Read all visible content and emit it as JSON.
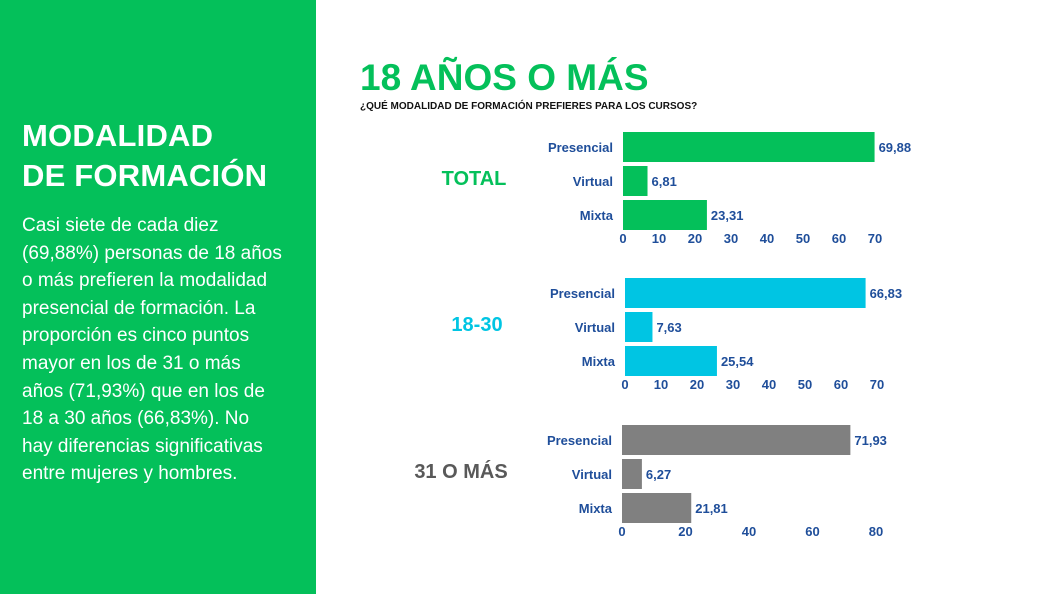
{
  "sidebar": {
    "title_line1": "MODALIDAD",
    "title_line2": "DE FORMACIÓN",
    "text": "Casi siete de cada diez (69,88%) personas de 18 años o más prefieren la modalidad presencial de formación. La proporción es cinco puntos mayor en los de 31 o más años (71,93%) que en los de 18 a 30 años (66,83%). No hay diferencias significativas entre mujeres y hombres."
  },
  "header": {
    "title": "18 AÑOS O MÁS",
    "question": "¿QUÉ MODALIDAD DE FORMACIÓN PREFIERES PARA LOS CURSOS?"
  },
  "colors": {
    "green": "#04c05a",
    "cyan": "#00c5e3",
    "gray": "#808080",
    "dark_gray": "#595959",
    "label_blue": "#1f4e9a"
  },
  "chart_data": [
    {
      "type": "bar",
      "orientation": "horizontal",
      "group_label": "TOTAL",
      "categories": [
        "Presencial",
        "Virtual",
        "Mixta"
      ],
      "values": [
        69.88,
        6.81,
        23.31
      ],
      "value_labels": [
        "69,88",
        "6,81",
        "23,31"
      ],
      "xlim": [
        0,
        70
      ],
      "xticks": [
        0,
        10,
        20,
        30,
        40,
        50,
        60,
        70
      ],
      "color": "#04c05a",
      "label_color": "#04c05a"
    },
    {
      "type": "bar",
      "orientation": "horizontal",
      "group_label": "18-30",
      "categories": [
        "Presencial",
        "Virtual",
        "Mixta"
      ],
      "values": [
        66.83,
        7.63,
        25.54
      ],
      "value_labels": [
        "66,83",
        "7,63",
        "25,54"
      ],
      "xlim": [
        0,
        70
      ],
      "xticks": [
        0,
        10,
        20,
        30,
        40,
        50,
        60,
        70
      ],
      "color": "#00c5e3",
      "label_color": "#00c5e3"
    },
    {
      "type": "bar",
      "orientation": "horizontal",
      "group_label": "31 O MÁS",
      "categories": [
        "Presencial",
        "Virtual",
        "Mixta"
      ],
      "values": [
        71.93,
        6.27,
        21.81
      ],
      "value_labels": [
        "71,93",
        "6,27",
        "21,81"
      ],
      "xlim": [
        0,
        80
      ],
      "xticks": [
        0,
        20,
        40,
        60,
        80
      ],
      "color": "#808080",
      "label_color": "#595959"
    }
  ]
}
